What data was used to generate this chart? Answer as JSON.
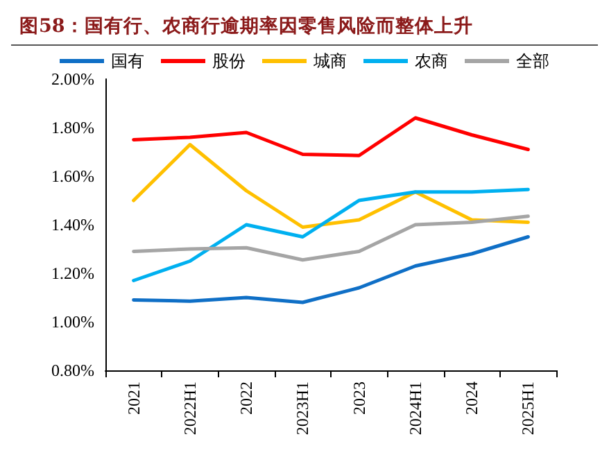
{
  "chart_data": {
    "type": "line",
    "title": "图58：国有行、农商行逾期率因零售风险而整体上升",
    "categories": [
      "2021",
      "2022H1",
      "2022",
      "2023H1",
      "2023",
      "2024H1",
      "2024",
      "2025H1"
    ],
    "series": [
      {
        "name": "国有",
        "color": "#0f6fc6",
        "values": [
          1.09,
          1.085,
          1.1,
          1.08,
          1.14,
          1.23,
          1.28,
          1.35
        ]
      },
      {
        "name": "股份",
        "color": "#ff0000",
        "values": [
          1.75,
          1.76,
          1.78,
          1.69,
          1.685,
          1.84,
          1.77,
          1.71
        ]
      },
      {
        "name": "城商",
        "color": "#ffc000",
        "values": [
          1.5,
          1.73,
          1.54,
          1.39,
          1.42,
          1.535,
          1.42,
          1.41
        ]
      },
      {
        "name": "农商",
        "color": "#00b0f0",
        "values": [
          1.17,
          1.25,
          1.4,
          1.35,
          1.5,
          1.535,
          1.535,
          1.545
        ]
      },
      {
        "name": "全部",
        "color": "#a5a5a5",
        "values": [
          1.29,
          1.3,
          1.305,
          1.255,
          1.29,
          1.4,
          1.41,
          1.435
        ]
      }
    ],
    "ylim": [
      0.8,
      2.0
    ],
    "yticks": [
      {
        "value": 0.8,
        "label": "0.80%"
      },
      {
        "value": 1.0,
        "label": "1.00%"
      },
      {
        "value": 1.2,
        "label": "1.20%"
      },
      {
        "value": 1.4,
        "label": "1.40%"
      },
      {
        "value": 1.6,
        "label": "1.60%"
      },
      {
        "value": 1.8,
        "label": "1.80%"
      },
      {
        "value": 2.0,
        "label": "2.00%"
      }
    ],
    "grid": false,
    "legend": "top",
    "marker": "none",
    "line_style": "solid"
  }
}
